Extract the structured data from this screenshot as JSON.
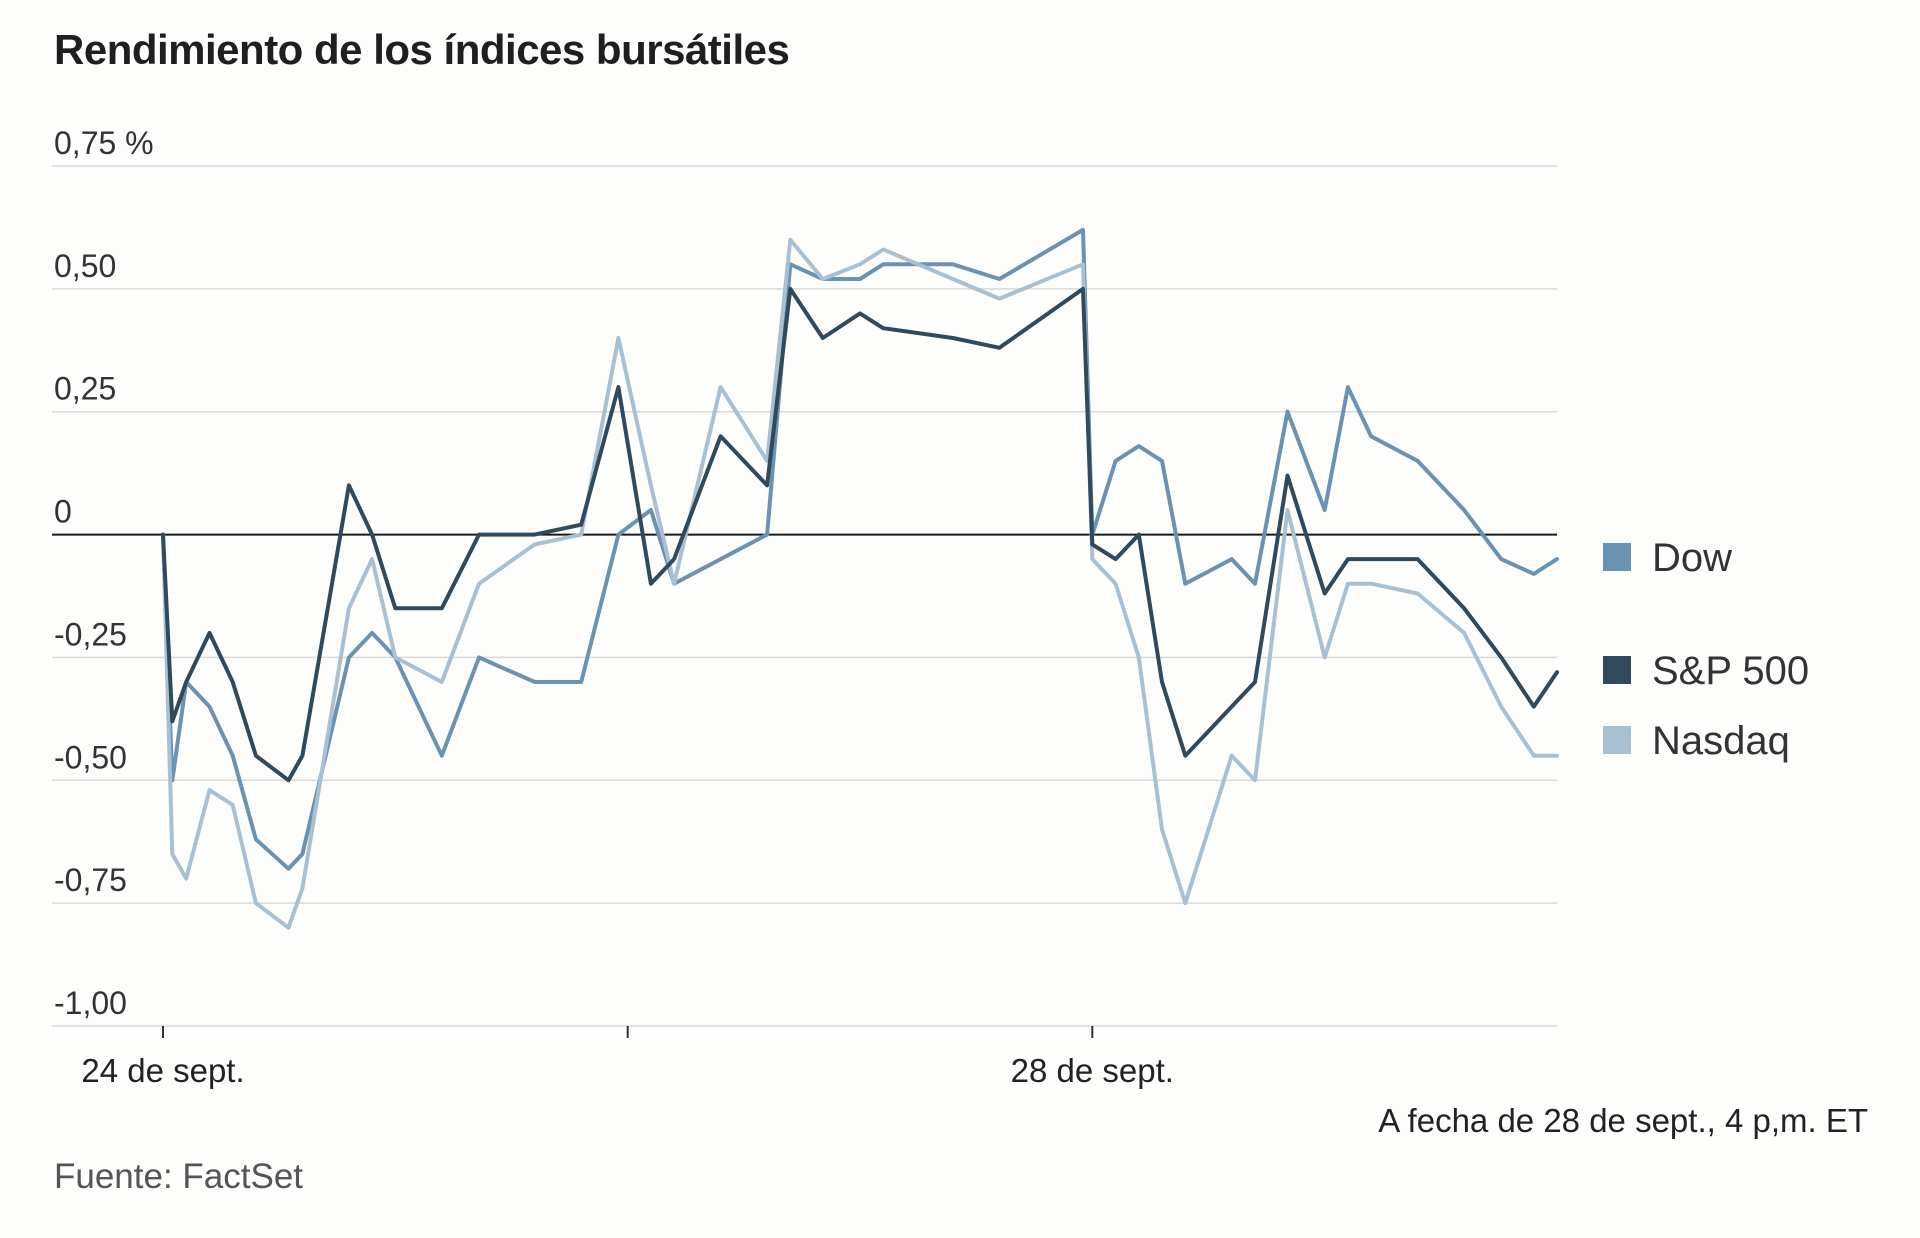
{
  "chart_data": {
    "type": "line",
    "title": "Rendimiento de los índices bursátiles",
    "xlabel": "",
    "ylabel": "",
    "ylim": [
      -1.0,
      0.75
    ],
    "yticks": [
      {
        "value": 0.75,
        "label": "0,75 %"
      },
      {
        "value": 0.5,
        "label": "0,50"
      },
      {
        "value": 0.25,
        "label": "0,25"
      },
      {
        "value": 0,
        "label": "0"
      },
      {
        "value": -0.25,
        "label": "-0,25"
      },
      {
        "value": -0.5,
        "label": "-0,50"
      },
      {
        "value": -0.75,
        "label": "-0,75"
      },
      {
        "value": -1.0,
        "label": "-1,00"
      }
    ],
    "xlim": [
      0,
      3
    ],
    "xticks": [
      {
        "value": 0,
        "label": "24 de sept."
      },
      {
        "value": 1,
        "label": ""
      },
      {
        "value": 2,
        "label": "28 de sept."
      }
    ],
    "grid": true,
    "legend_position": "right",
    "series": [
      {
        "name": "Dow",
        "color": "#6a93b3",
        "points": [
          [
            0.0,
            0.0
          ],
          [
            0.02,
            -0.5
          ],
          [
            0.05,
            -0.3
          ],
          [
            0.1,
            -0.35
          ],
          [
            0.15,
            -0.45
          ],
          [
            0.2,
            -0.62
          ],
          [
            0.27,
            -0.68
          ],
          [
            0.3,
            -0.65
          ],
          [
            0.4,
            -0.25
          ],
          [
            0.45,
            -0.2
          ],
          [
            0.5,
            -0.25
          ],
          [
            0.6,
            -0.45
          ],
          [
            0.68,
            -0.25
          ],
          [
            0.8,
            -0.3
          ],
          [
            0.9,
            -0.3
          ],
          [
            0.98,
            0.0
          ],
          [
            1.05,
            0.05
          ],
          [
            1.1,
            -0.1
          ],
          [
            1.2,
            -0.05
          ],
          [
            1.3,
            0.0
          ],
          [
            1.35,
            0.55
          ],
          [
            1.42,
            0.52
          ],
          [
            1.5,
            0.52
          ],
          [
            1.55,
            0.55
          ],
          [
            1.7,
            0.55
          ],
          [
            1.8,
            0.52
          ],
          [
            1.98,
            0.62
          ],
          [
            2.0,
            0.0
          ],
          [
            2.05,
            0.15
          ],
          [
            2.1,
            0.18
          ],
          [
            2.15,
            0.15
          ],
          [
            2.2,
            -0.1
          ],
          [
            2.3,
            -0.05
          ],
          [
            2.35,
            -0.1
          ],
          [
            2.42,
            0.25
          ],
          [
            2.5,
            0.05
          ],
          [
            2.55,
            0.3
          ],
          [
            2.6,
            0.2
          ],
          [
            2.7,
            0.15
          ],
          [
            2.8,
            0.05
          ],
          [
            2.88,
            -0.05
          ],
          [
            2.95,
            -0.08
          ],
          [
            3.0,
            -0.05
          ]
        ]
      },
      {
        "name": "S&P 500",
        "color": "#2f4a5c",
        "points": [
          [
            0.0,
            0.0
          ],
          [
            0.02,
            -0.38
          ],
          [
            0.05,
            -0.3
          ],
          [
            0.1,
            -0.2
          ],
          [
            0.15,
            -0.3
          ],
          [
            0.2,
            -0.45
          ],
          [
            0.27,
            -0.5
          ],
          [
            0.3,
            -0.45
          ],
          [
            0.4,
            0.1
          ],
          [
            0.45,
            0.0
          ],
          [
            0.5,
            -0.15
          ],
          [
            0.6,
            -0.15
          ],
          [
            0.68,
            0.0
          ],
          [
            0.8,
            0.0
          ],
          [
            0.9,
            0.02
          ],
          [
            0.98,
            0.3
          ],
          [
            1.05,
            -0.1
          ],
          [
            1.1,
            -0.05
          ],
          [
            1.2,
            0.2
          ],
          [
            1.3,
            0.1
          ],
          [
            1.35,
            0.5
          ],
          [
            1.42,
            0.4
          ],
          [
            1.5,
            0.45
          ],
          [
            1.55,
            0.42
          ],
          [
            1.7,
            0.4
          ],
          [
            1.8,
            0.38
          ],
          [
            1.98,
            0.5
          ],
          [
            2.0,
            -0.02
          ],
          [
            2.05,
            -0.05
          ],
          [
            2.1,
            0.0
          ],
          [
            2.15,
            -0.3
          ],
          [
            2.2,
            -0.45
          ],
          [
            2.3,
            -0.35
          ],
          [
            2.35,
            -0.3
          ],
          [
            2.42,
            0.12
          ],
          [
            2.5,
            -0.12
          ],
          [
            2.55,
            -0.05
          ],
          [
            2.6,
            -0.05
          ],
          [
            2.7,
            -0.05
          ],
          [
            2.8,
            -0.15
          ],
          [
            2.88,
            -0.25
          ],
          [
            2.95,
            -0.35
          ],
          [
            3.0,
            -0.28
          ]
        ]
      },
      {
        "name": "Nasdaq",
        "color": "#a9c0d3",
        "points": [
          [
            0.0,
            0.0
          ],
          [
            0.02,
            -0.65
          ],
          [
            0.05,
            -0.7
          ],
          [
            0.1,
            -0.52
          ],
          [
            0.15,
            -0.55
          ],
          [
            0.2,
            -0.75
          ],
          [
            0.27,
            -0.8
          ],
          [
            0.3,
            -0.72
          ],
          [
            0.4,
            -0.15
          ],
          [
            0.45,
            -0.05
          ],
          [
            0.5,
            -0.25
          ],
          [
            0.6,
            -0.3
          ],
          [
            0.68,
            -0.1
          ],
          [
            0.8,
            -0.02
          ],
          [
            0.9,
            0.0
          ],
          [
            0.98,
            0.4
          ],
          [
            1.05,
            0.1
          ],
          [
            1.1,
            -0.1
          ],
          [
            1.2,
            0.3
          ],
          [
            1.3,
            0.15
          ],
          [
            1.35,
            0.6
          ],
          [
            1.42,
            0.52
          ],
          [
            1.5,
            0.55
          ],
          [
            1.55,
            0.58
          ],
          [
            1.7,
            0.52
          ],
          [
            1.8,
            0.48
          ],
          [
            1.98,
            0.55
          ],
          [
            2.0,
            -0.05
          ],
          [
            2.05,
            -0.1
          ],
          [
            2.1,
            -0.25
          ],
          [
            2.15,
            -0.6
          ],
          [
            2.2,
            -0.75
          ],
          [
            2.3,
            -0.45
          ],
          [
            2.35,
            -0.5
          ],
          [
            2.42,
            0.05
          ],
          [
            2.5,
            -0.25
          ],
          [
            2.55,
            -0.1
          ],
          [
            2.6,
            -0.1
          ],
          [
            2.7,
            -0.12
          ],
          [
            2.8,
            -0.2
          ],
          [
            2.88,
            -0.35
          ],
          [
            2.95,
            -0.45
          ],
          [
            3.0,
            -0.45
          ]
        ]
      }
    ],
    "note": "A fecha de 28 de sept., 4 p,m. ET",
    "source": "Fuente: FactSet"
  }
}
